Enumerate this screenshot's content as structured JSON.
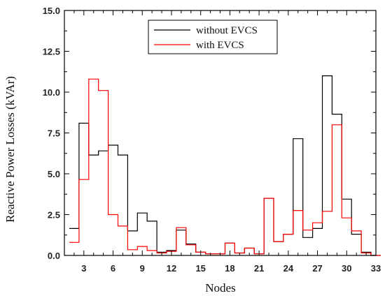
{
  "chart_data": {
    "type": "line",
    "step": "histogram",
    "title": "",
    "xlabel": "Nodes",
    "ylabel": "Reactive Power Losses (kVAr)",
    "xlim": [
      1,
      33
    ],
    "ylim": [
      0,
      15
    ],
    "x_ticks": [
      3,
      6,
      9,
      12,
      15,
      18,
      21,
      24,
      27,
      30,
      33
    ],
    "y_ticks": [
      "0.0",
      "2.5",
      "5.0",
      "7.5",
      "10.0",
      "12.5",
      "15.0"
    ],
    "legend_position": "top-right",
    "x": [
      2,
      3,
      4,
      5,
      6,
      7,
      8,
      9,
      10,
      11,
      12,
      13,
      14,
      15,
      16,
      17,
      18,
      19,
      20,
      21,
      22,
      23,
      24,
      25,
      26,
      27,
      28,
      29,
      30,
      31,
      32,
      33
    ],
    "series": [
      {
        "name": "without EVCS",
        "color": "#000000",
        "values": [
          1.65,
          8.1,
          6.15,
          6.4,
          6.75,
          6.15,
          1.5,
          2.6,
          2.1,
          0.2,
          0.3,
          1.55,
          0.7,
          0.2,
          0.1,
          0.1,
          0.75,
          0.15,
          0.45,
          0.1,
          3.5,
          0.85,
          1.3,
          7.15,
          1.1,
          1.65,
          11.0,
          8.65,
          3.45,
          1.3,
          0.2,
          0.0
        ]
      },
      {
        "name": "with EVCS",
        "color": "#ff0000",
        "values": [
          0.8,
          4.65,
          10.8,
          10.1,
          2.5,
          1.8,
          0.35,
          0.55,
          0.3,
          0.15,
          0.25,
          1.7,
          0.65,
          0.2,
          0.1,
          0.1,
          0.75,
          0.15,
          0.45,
          0.1,
          3.5,
          0.85,
          1.3,
          2.75,
          1.55,
          2.0,
          2.7,
          8.0,
          2.3,
          1.5,
          0.15,
          0.0
        ]
      }
    ]
  }
}
